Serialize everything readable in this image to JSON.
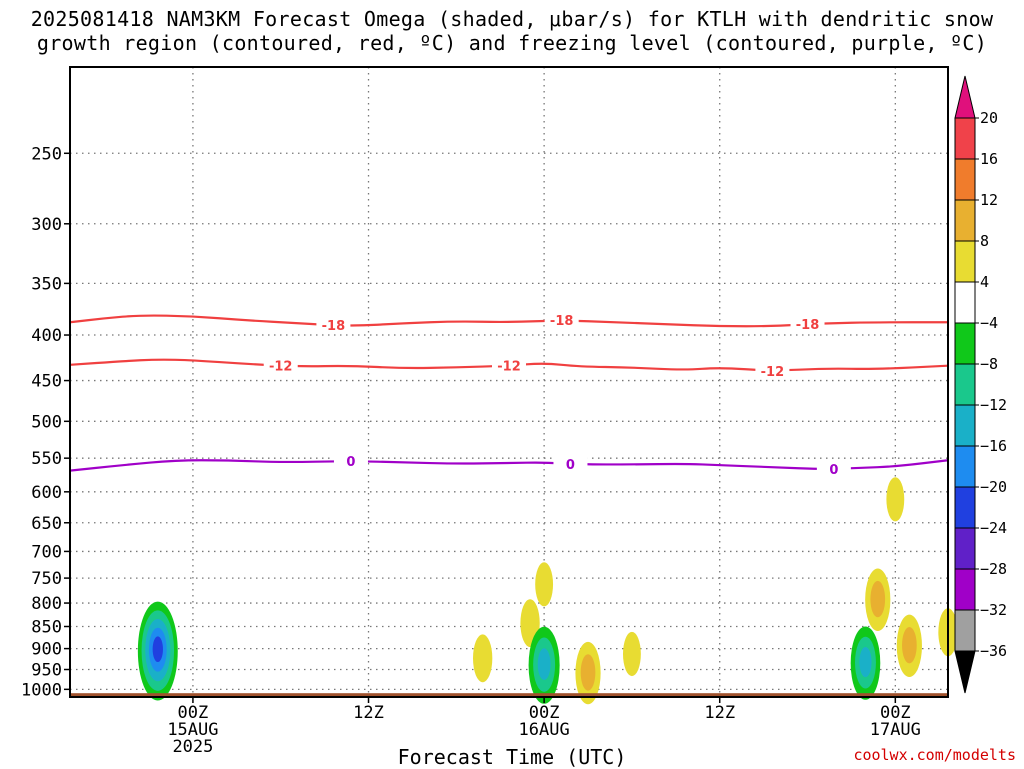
{
  "title": {
    "line1": "2025081418 NAM3KM Forecast Omega (shaded, μbar/s) for KTLH with dendritic snow",
    "line2": "growth region (contoured, red, ºC) and freezing level (contoured, purple, ºC)"
  },
  "credit": "coolwx.com/modelts",
  "chart_data": {
    "type": "heatmap",
    "xlabel": "Forecast Time (UTC)",
    "ylabel": "",
    "y_scale": "log-pressure",
    "ylim": [
      1020,
      200
    ],
    "grid": true,
    "y_ticks": [
      250,
      300,
      350,
      400,
      450,
      500,
      550,
      600,
      650,
      700,
      750,
      800,
      850,
      900,
      950,
      1000
    ],
    "x_range_hours": [
      -7,
      43
    ],
    "x_ticks": [
      {
        "hour": 0,
        "lines": [
          "00Z",
          "15AUG",
          "2025"
        ]
      },
      {
        "hour": 10,
        "lines": [
          "12Z"
        ]
      },
      {
        "hour": 20,
        "lines": [
          "00Z",
          "16AUG"
        ]
      },
      {
        "hour": 30,
        "lines": [
          "12Z"
        ]
      },
      {
        "hour": 40,
        "lines": [
          "00Z",
          "17AUG"
        ]
      }
    ],
    "colorbar": {
      "labels": [
        "20",
        "16",
        "12",
        "8",
        "4",
        "−4",
        "−8",
        "−12",
        "−16",
        "−20",
        "−24",
        "−28",
        "−32",
        "−36"
      ],
      "bands": [
        {
          "from": 16,
          "to": 20,
          "color": "#f0424a"
        },
        {
          "from": 12,
          "to": 16,
          "color": "#f07c2c"
        },
        {
          "from": 8,
          "to": 12,
          "color": "#e8b030"
        },
        {
          "from": 4,
          "to": 8,
          "color": "#e8dc32"
        },
        {
          "from": -4,
          "to": 4,
          "color": "#ffffff"
        },
        {
          "from": -8,
          "to": -4,
          "color": "#10c81a"
        },
        {
          "from": -12,
          "to": -8,
          "color": "#1ac88c"
        },
        {
          "from": -16,
          "to": -12,
          "color": "#1ab0c8"
        },
        {
          "from": -20,
          "to": -16,
          "color": "#1e8cf0"
        },
        {
          "from": -24,
          "to": -20,
          "color": "#2040e0"
        },
        {
          "from": -28,
          "to": -24,
          "color": "#6020c8"
        },
        {
          "from": -32,
          "to": -28,
          "color": "#a000c8"
        },
        {
          "from": -36,
          "to": -32,
          "color": "#a0a0a0"
        }
      ],
      "top_arrow_color": "#e0107c",
      "bottom_arrow_color": "#000000"
    },
    "contours": [
      {
        "label": "-18",
        "color": "#f04040",
        "label_hours": [
          -7.5,
          8,
          21,
          35
        ],
        "points": [
          [
            -7,
            387
          ],
          [
            -5,
            383
          ],
          [
            -3,
            380
          ],
          [
            0,
            381
          ],
          [
            3,
            385
          ],
          [
            6,
            388
          ],
          [
            9,
            391
          ],
          [
            12,
            388
          ],
          [
            15,
            386
          ],
          [
            18,
            387
          ],
          [
            21,
            385
          ],
          [
            24,
            387
          ],
          [
            27,
            389
          ],
          [
            30,
            391
          ],
          [
            33,
            391
          ],
          [
            36,
            388
          ],
          [
            39,
            387
          ],
          [
            43,
            387
          ]
        ]
      },
      {
        "label": "-12",
        "color": "#f04040",
        "label_hours": [
          5,
          18,
          33
        ],
        "points": [
          [
            -7,
            432
          ],
          [
            -4,
            428
          ],
          [
            -2,
            426
          ],
          [
            0,
            427
          ],
          [
            3,
            431
          ],
          [
            6,
            434
          ],
          [
            9,
            433
          ],
          [
            12,
            436
          ],
          [
            15,
            435
          ],
          [
            18,
            433
          ],
          [
            20,
            430
          ],
          [
            22,
            434
          ],
          [
            25,
            435
          ],
          [
            28,
            438
          ],
          [
            30,
            435
          ],
          [
            33,
            439
          ],
          [
            36,
            436
          ],
          [
            39,
            437
          ],
          [
            43,
            433
          ]
        ]
      },
      {
        "label": "0",
        "color": "#a000c8",
        "label_hours": [
          9,
          21.5,
          36.5
        ],
        "points": [
          [
            -7,
            568
          ],
          [
            -4,
            560
          ],
          [
            -1,
            553
          ],
          [
            2,
            553
          ],
          [
            5,
            556
          ],
          [
            9,
            554
          ],
          [
            12,
            556
          ],
          [
            15,
            558
          ],
          [
            18,
            557
          ],
          [
            20,
            556
          ],
          [
            22,
            559
          ],
          [
            25,
            559
          ],
          [
            28,
            558
          ],
          [
            30,
            560
          ],
          [
            33,
            563
          ],
          [
            36,
            566
          ],
          [
            38,
            564
          ],
          [
            40,
            562
          ],
          [
            43,
            553
          ]
        ]
      }
    ],
    "omega_cells": [
      {
        "hour": -2,
        "pressure": 900,
        "value": -20
      },
      {
        "hour": 16.5,
        "pressure": 920,
        "value": 6
      },
      {
        "hour": 19.2,
        "pressure": 840,
        "value": 6
      },
      {
        "hour": 20,
        "pressure": 760,
        "value": 5
      },
      {
        "hour": 20,
        "pressure": 935,
        "value": -14
      },
      {
        "hour": 22.5,
        "pressure": 955,
        "value": 10
      },
      {
        "hour": 25,
        "pressure": 910,
        "value": 5
      },
      {
        "hour": 38.3,
        "pressure": 930,
        "value": -13
      },
      {
        "hour": 39,
        "pressure": 790,
        "value": 10
      },
      {
        "hour": 40.8,
        "pressure": 890,
        "value": 10
      },
      {
        "hour": 40,
        "pressure": 610,
        "value": 5
      },
      {
        "hour": 43,
        "pressure": 860,
        "value": 6
      }
    ],
    "terrain_color": "#a0522d"
  }
}
